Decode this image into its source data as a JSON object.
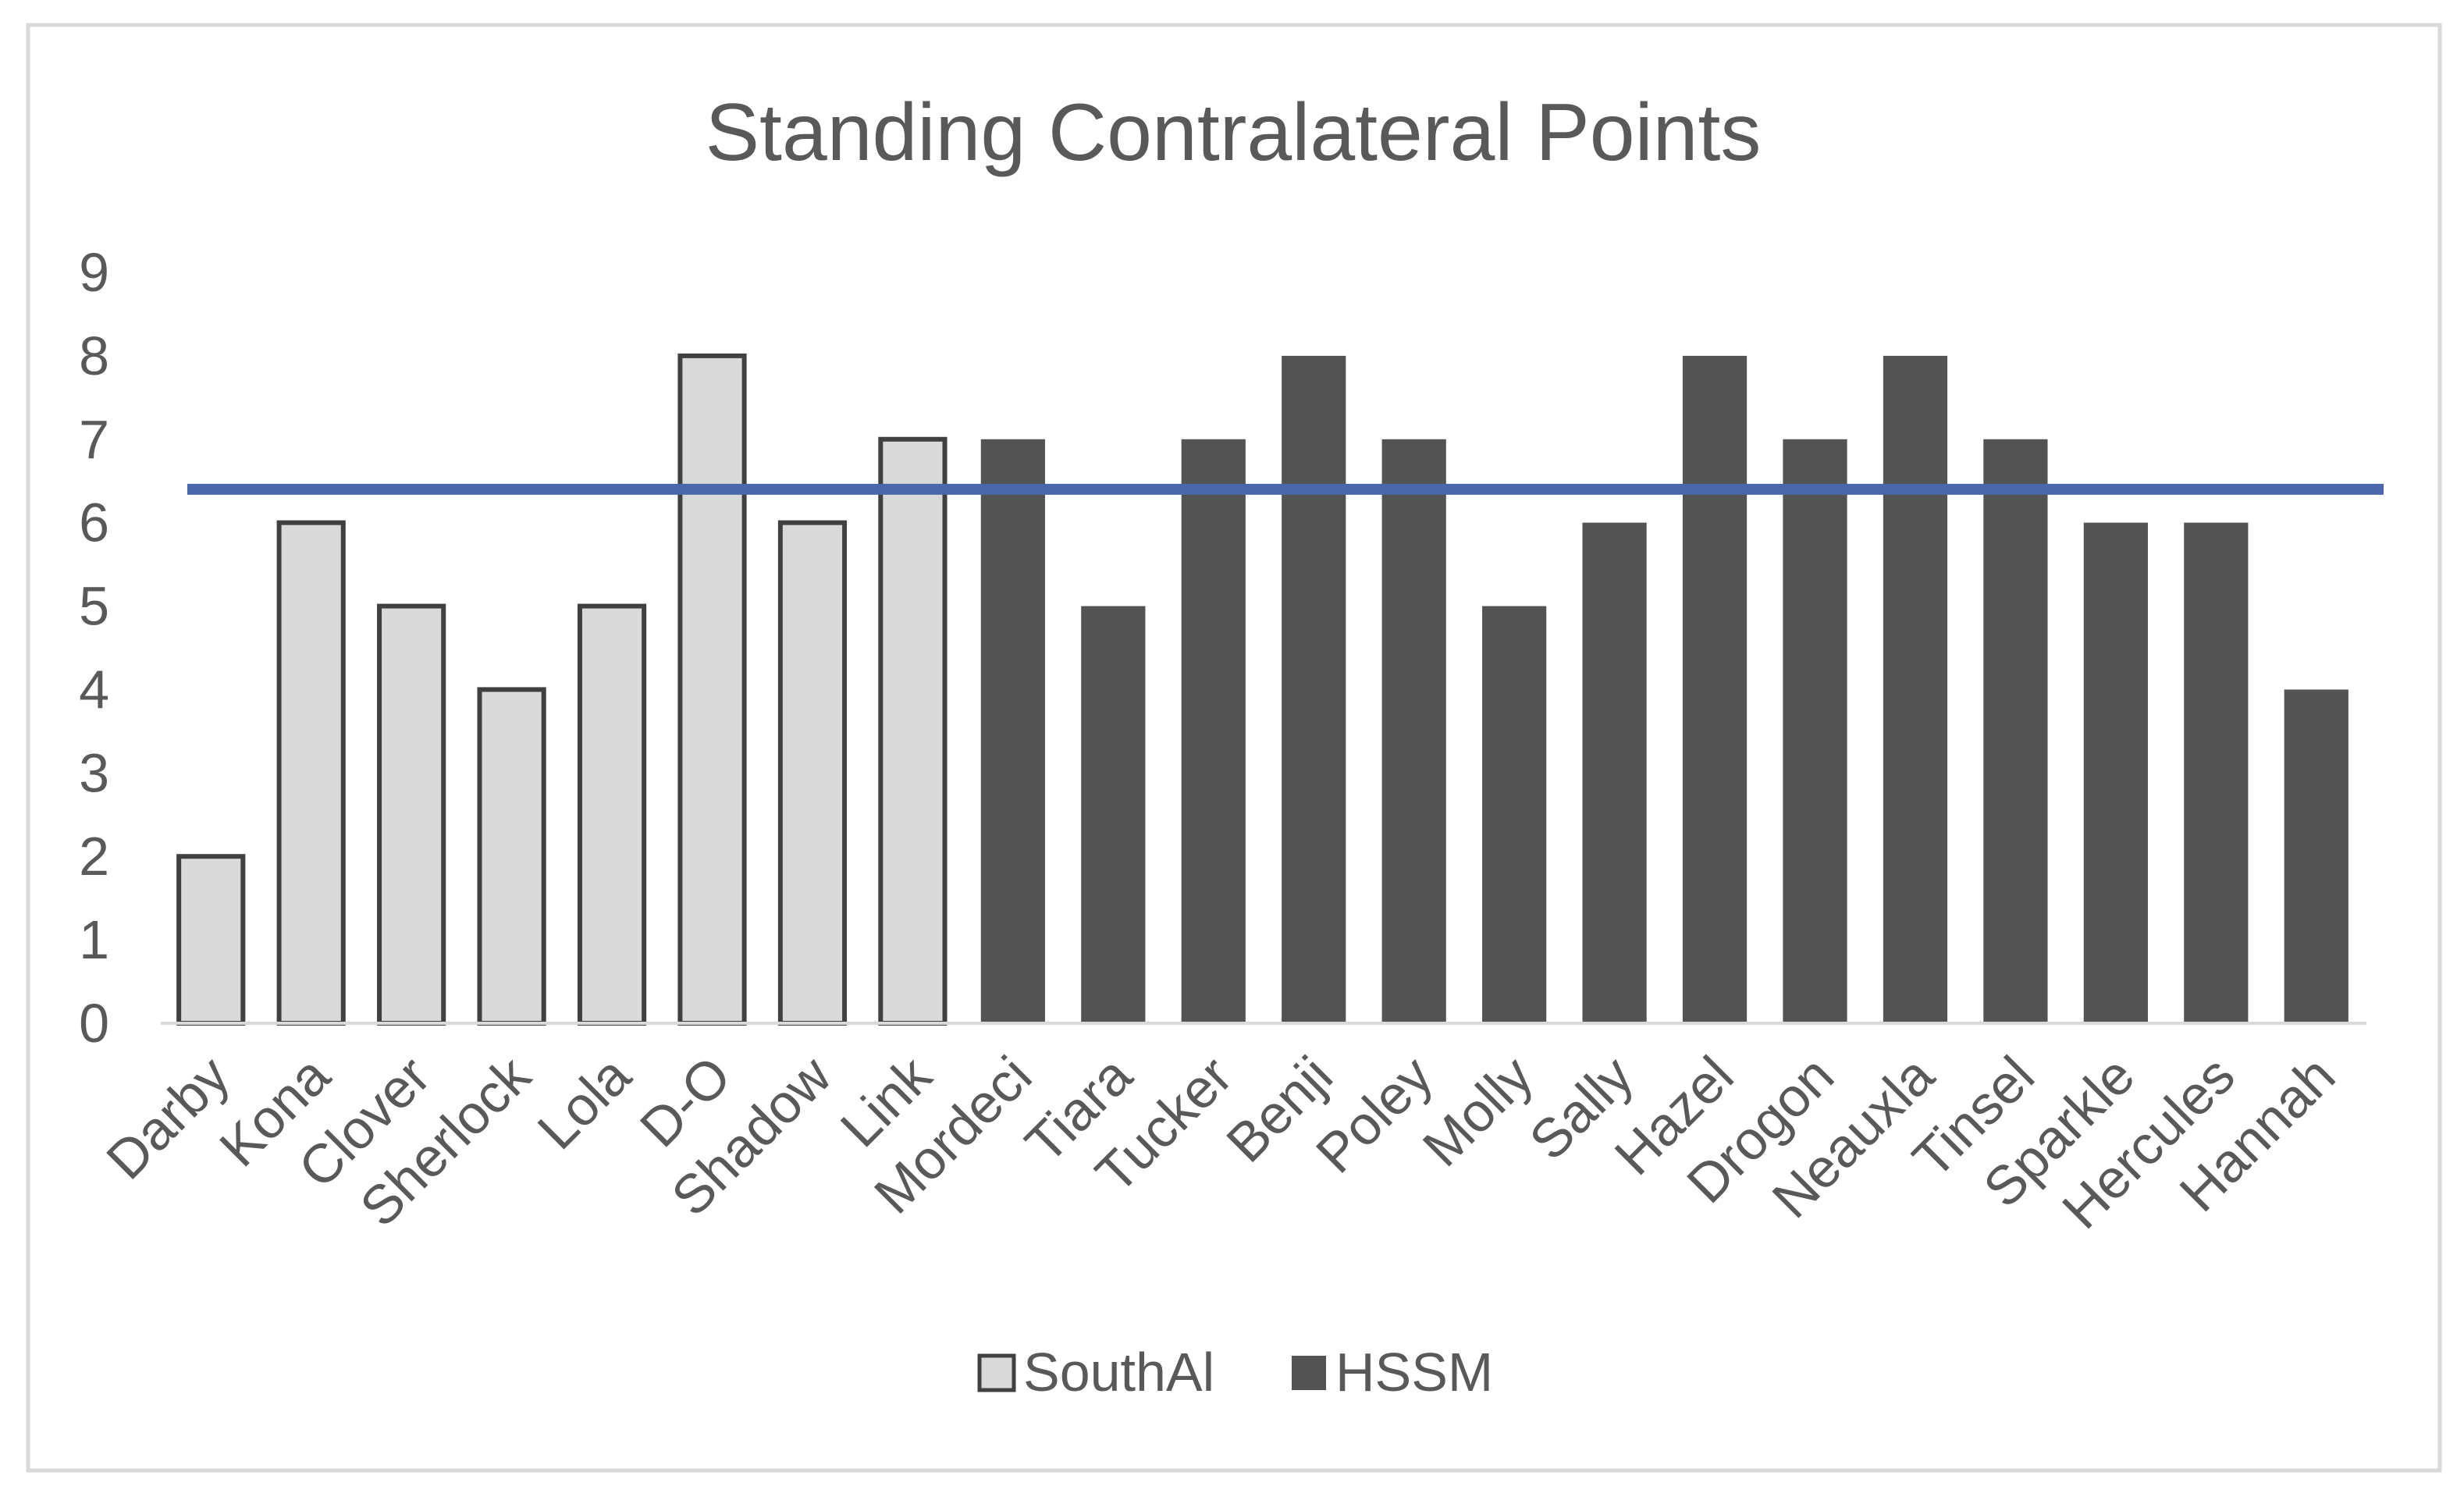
{
  "chart_data": {
    "type": "bar",
    "title": "Standing Contralateral Points",
    "xlabel": "",
    "ylabel": "",
    "ylim": [
      0,
      9
    ],
    "yticks": [
      0,
      1,
      2,
      3,
      4,
      5,
      6,
      7,
      8,
      9
    ],
    "grid": false,
    "legend_position": "bottom",
    "categories": [
      "Darby",
      "Kona",
      "Clover",
      "Sherlock",
      "Lola",
      "D-O",
      "Shadow",
      "Link",
      "Mordeci",
      "Tiara",
      "Tucker",
      "Benji",
      "Poley",
      "Molly",
      "Sally",
      "Hazel",
      "Drogon",
      "Neauxla",
      "Tinsel",
      "Sparkle",
      "Hercules",
      "Hannah"
    ],
    "series": [
      {
        "name": "SouthAl",
        "color": "#d9d9d9",
        "stroke": "#404040",
        "values": [
          2,
          6,
          5,
          4,
          5,
          8,
          6,
          7,
          null,
          null,
          null,
          null,
          null,
          null,
          null,
          null,
          null,
          null,
          null,
          null,
          null,
          null
        ]
      },
      {
        "name": "HSSM",
        "color": "#535353",
        "stroke": "#535353",
        "values": [
          null,
          null,
          null,
          null,
          null,
          null,
          null,
          null,
          7,
          5,
          7,
          8,
          7,
          5,
          6,
          8,
          7,
          8,
          7,
          6,
          6,
          4
        ]
      }
    ],
    "reference_line": {
      "value": 6.4,
      "color": "#4a67ad"
    }
  }
}
